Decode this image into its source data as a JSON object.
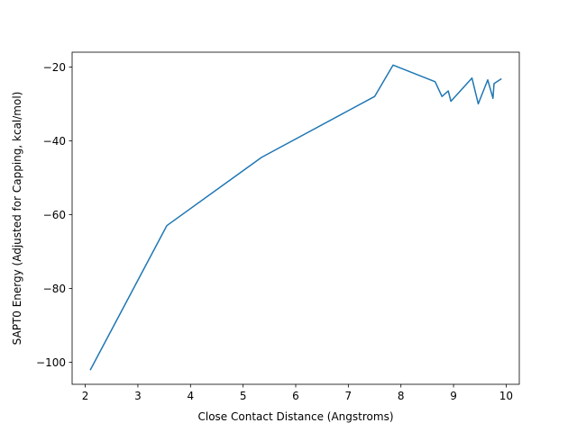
{
  "chart_data": {
    "type": "line",
    "title": "",
    "xlabel": "Close Contact Distance (Angstroms)",
    "ylabel": "SAPT0 Energy (Adjusted for Capping, kcal/mol)",
    "xlim": [
      1.75,
      10.25
    ],
    "ylim": [
      -106.0,
      -16.0
    ],
    "grid": false,
    "line_color": "#1f77b4",
    "x_ticks": [
      2,
      3,
      4,
      5,
      6,
      7,
      8,
      9,
      10
    ],
    "x_tick_labels": [
      "2",
      "3",
      "4",
      "5",
      "6",
      "7",
      "8",
      "9",
      "10"
    ],
    "y_ticks": [
      -100,
      -80,
      -60,
      -40,
      -20
    ],
    "y_tick_labels": [
      "−100",
      "−80",
      "−60",
      "−40",
      "−20"
    ],
    "series": [
      {
        "x": [
          2.1,
          3.55,
          5.35,
          7.5,
          7.85,
          8.65,
          8.78,
          8.9,
          8.95,
          9.35,
          9.47,
          9.65,
          9.75,
          9.77,
          9.9
        ],
        "y": [
          -102.0,
          -63.0,
          -44.5,
          -28.0,
          -19.5,
          -24.0,
          -28.0,
          -26.5,
          -29.3,
          -23.0,
          -30.0,
          -23.5,
          -28.5,
          -24.5,
          -23.3
        ]
      }
    ]
  }
}
